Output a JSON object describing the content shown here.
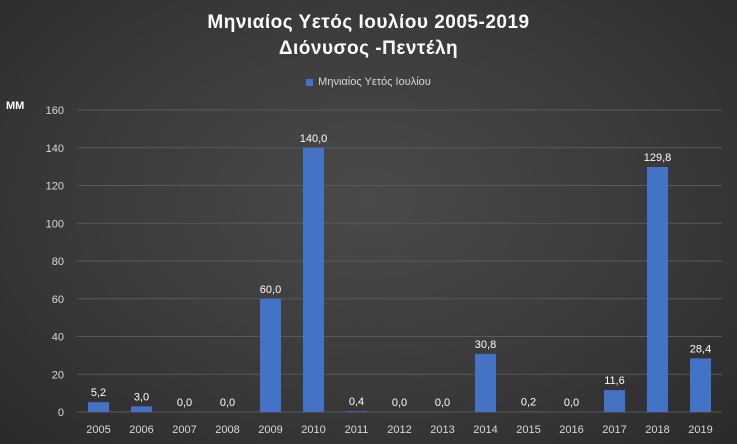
{
  "chart_data": {
    "type": "bar",
    "title": "Μηνιαίος  Υετός  Ιουλίου  2005-2019",
    "subtitle": "Διόνυσος  -Πεντέλη",
    "ylabel": "MM",
    "xlabel": "",
    "legend": {
      "label": "Μηνιαίος Υετός Ιουλίου",
      "position": "top"
    },
    "ylim": [
      0,
      160
    ],
    "yticks": [
      0,
      20,
      40,
      60,
      80,
      100,
      120,
      140,
      160
    ],
    "grid": true,
    "categories": [
      "2005",
      "2006",
      "2007",
      "2008",
      "2009",
      "2010",
      "2011",
      "2012",
      "2013",
      "2014",
      "2015",
      "2016",
      "2017",
      "2018",
      "2019"
    ],
    "values": [
      5.2,
      3.0,
      0.0,
      0.0,
      60.0,
      140.0,
      0.4,
      0.0,
      0.0,
      30.8,
      0.2,
      0.0,
      11.6,
      129.8,
      28.4
    ],
    "value_labels": [
      "5,2",
      "3,0",
      "0,0",
      "0,0",
      "60,0",
      "140,0",
      "0,4",
      "0,0",
      "0,0",
      "30,8",
      "0,2",
      "0,0",
      "11,6",
      "129,8",
      "28,4"
    ],
    "colors": {
      "bar": "#4472c4",
      "grid": "#595959",
      "axis_text": "#d9d9d9",
      "label_text": "#ffffff"
    }
  }
}
